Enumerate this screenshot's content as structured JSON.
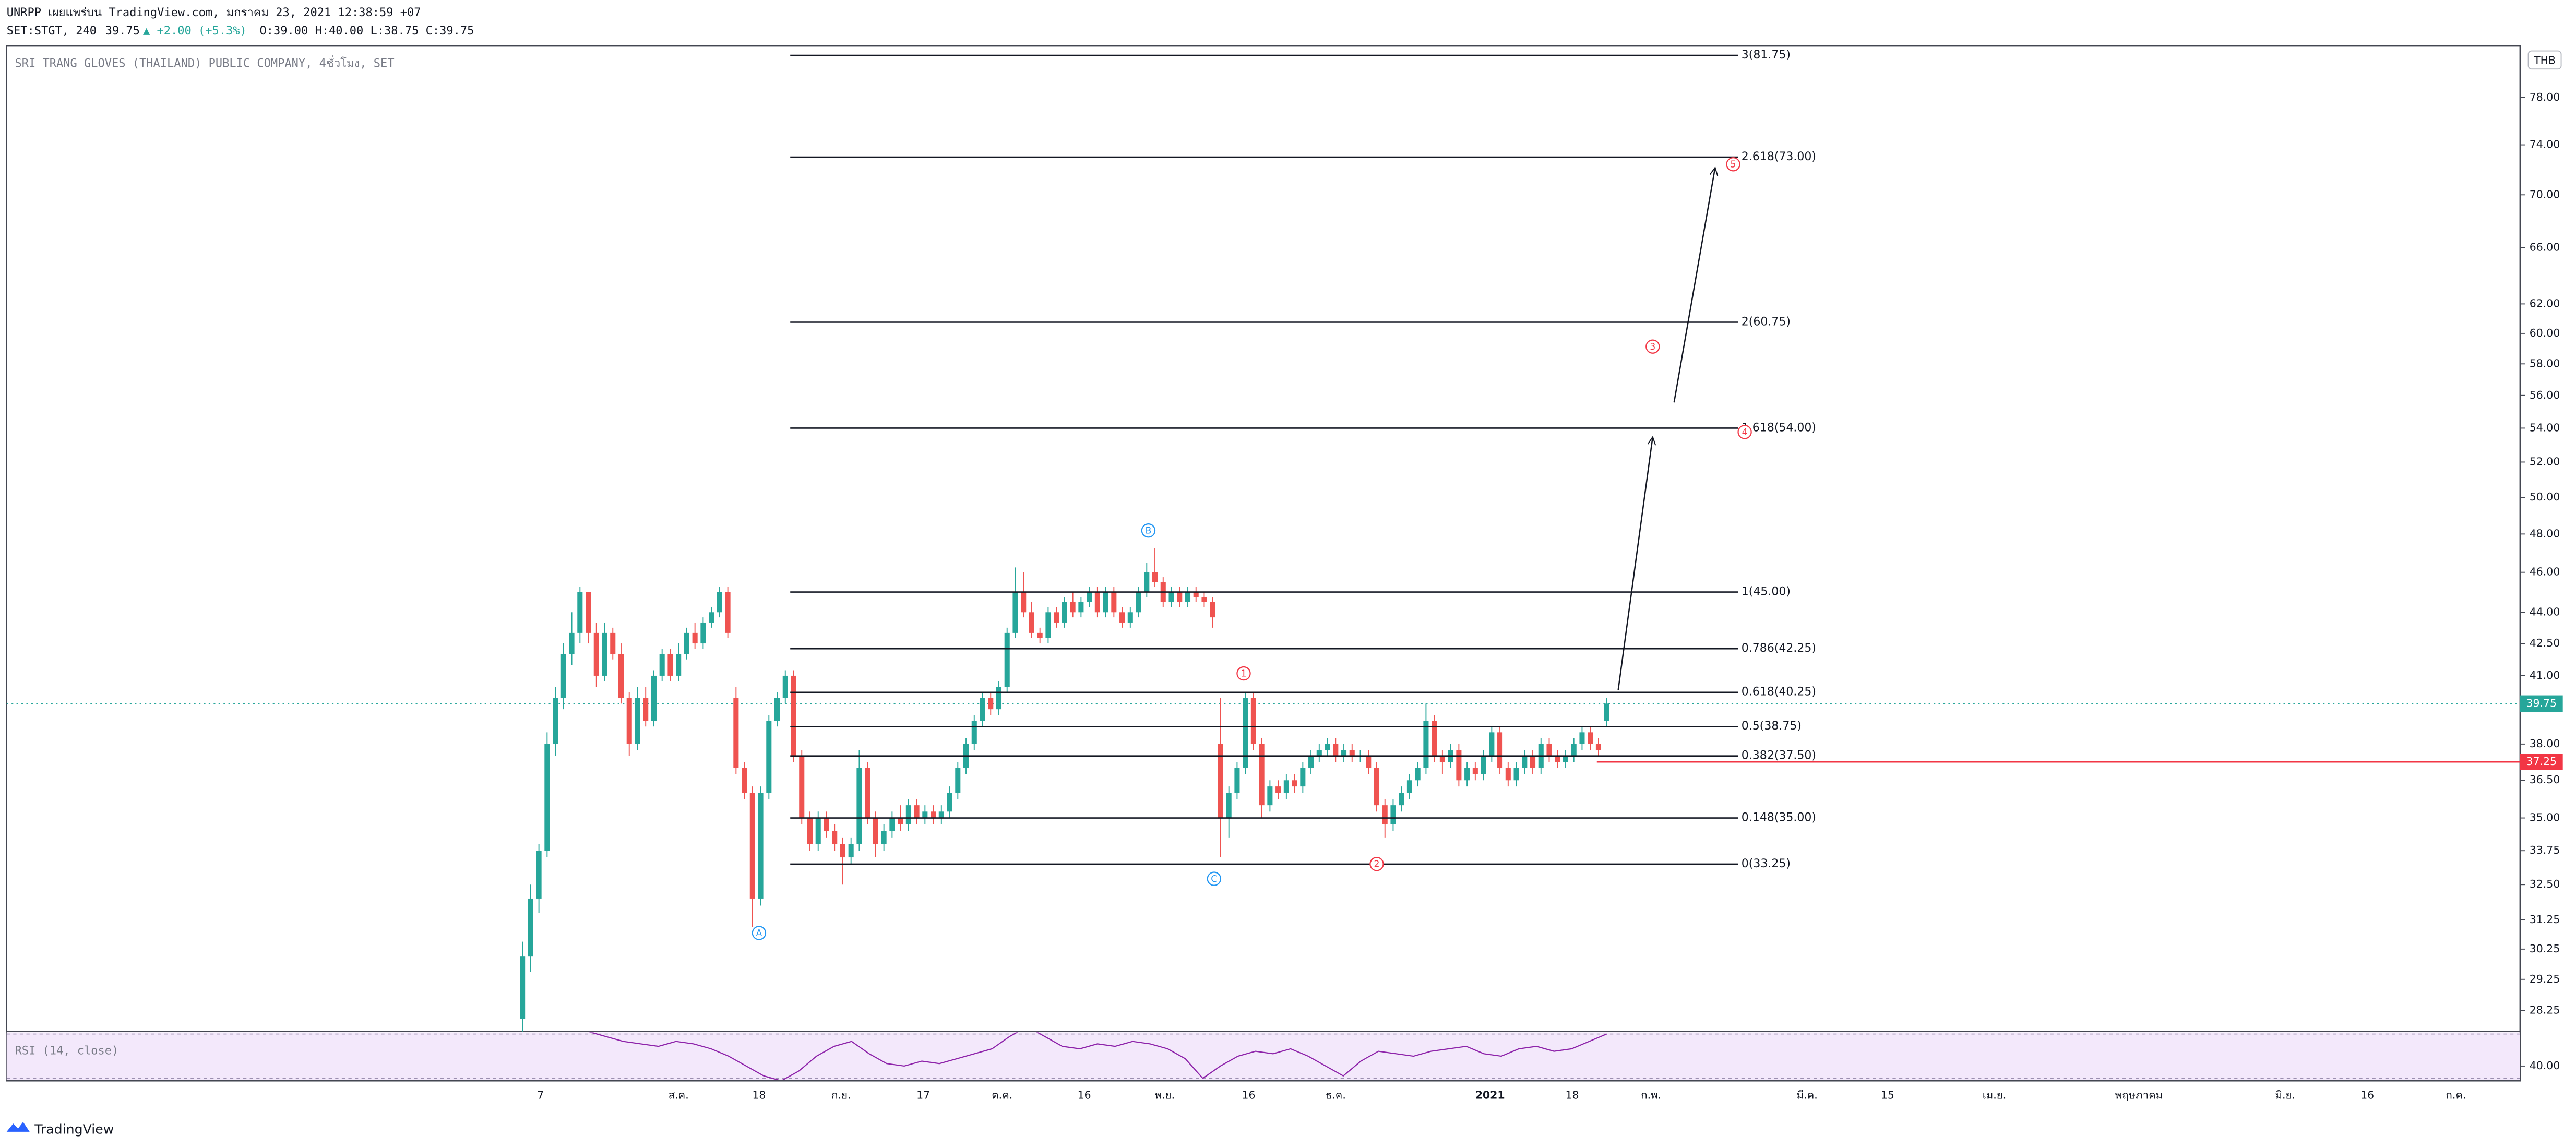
{
  "header": {
    "line1": "UNRPP เผยแพร่บน TradingView.com, มกราคม 23, 2021 12:38:59 +07",
    "symbol": "SET:STGT, 240",
    "last": "39.75",
    "change": "▲ +2.00 (+5.3%)",
    "ohlc": "O:39.00 H:40.00 L:38.75 C:39.75"
  },
  "footer": {
    "brand": "TradingView"
  },
  "chart_data": {
    "type": "candlestick",
    "title": "SRI TRANG GLOVES (THAILAND) PUBLIC COMPANY, 4ชั่วโมง, SET",
    "currency": "THB",
    "log_scale": true,
    "up_color": "#26a69a",
    "down_color": "#ef5350",
    "ylim": [
      27.6,
      82.6
    ],
    "yticks": [
      {
        "value": 78,
        "label": "78.00"
      },
      {
        "value": 74,
        "label": "74.00"
      },
      {
        "value": 70,
        "label": "70.00"
      },
      {
        "value": 66,
        "label": "66.00"
      },
      {
        "value": 62,
        "label": "62.00"
      },
      {
        "value": 60,
        "label": "60.00"
      },
      {
        "value": 58,
        "label": "58.00"
      },
      {
        "value": 56,
        "label": "56.00"
      },
      {
        "value": 54,
        "label": "54.00"
      },
      {
        "value": 52,
        "label": "52.00"
      },
      {
        "value": 50,
        "label": "50.00"
      },
      {
        "value": 48,
        "label": "48.00"
      },
      {
        "value": 46,
        "label": "46.00"
      },
      {
        "value": 44,
        "label": "44.00"
      },
      {
        "value": 42.5,
        "label": "42.50"
      },
      {
        "value": 41,
        "label": "41.00"
      },
      {
        "value": 38,
        "label": "38.00"
      },
      {
        "value": 36.5,
        "label": "36.50"
      },
      {
        "value": 35,
        "label": "35.00"
      },
      {
        "value": 33.75,
        "label": "33.75"
      },
      {
        "value": 32.5,
        "label": "32.50"
      },
      {
        "value": 31.25,
        "label": "31.25"
      },
      {
        "value": 30.25,
        "label": "30.25"
      },
      {
        "value": 29.25,
        "label": "29.25"
      },
      {
        "value": 28.25,
        "label": "28.25"
      }
    ],
    "x_labels": [
      "7",
      "ส.ค.",
      "18",
      "ก.ย.",
      "17",
      "ต.ค.",
      "16",
      "พ.ย.",
      "16",
      "ธ.ค.",
      "2021",
      "18",
      "ก.พ.",
      "มี.ค.",
      "15",
      "เม.ย.",
      "พฤษภาคม",
      "มิ.ย.",
      "16",
      "ก.ค."
    ],
    "last_price": 39.75,
    "last_price_color": "#26a69a",
    "level_price": 37.25,
    "level_color": "#f23645",
    "fib_levels": [
      {
        "label": "3(81.75)",
        "value": 81.75
      },
      {
        "label": "2.618(73.00)",
        "value": 73
      },
      {
        "label": "2(60.75)",
        "value": 60.75
      },
      {
        "label": "1.618(54.00)",
        "value": 54
      },
      {
        "label": "1(45.00)",
        "value": 45
      },
      {
        "label": "0.786(42.25)",
        "value": 42.25
      },
      {
        "label": "0.618(40.25)",
        "value": 40.25
      },
      {
        "label": "0.5(38.75)",
        "value": 38.75
      },
      {
        "label": "0.382(37.50)",
        "value": 37.5
      },
      {
        "label": "0.148(35.00)",
        "value": 35
      },
      {
        "label": "0(33.25)",
        "value": 33.25
      }
    ],
    "wave_labels": [
      {
        "label": "1",
        "color": "#f23645"
      },
      {
        "label": "2",
        "color": "#f23645"
      },
      {
        "label": "3",
        "color": "#f23645"
      },
      {
        "label": "4",
        "color": "#f23645"
      },
      {
        "label": "5",
        "color": "#f23645"
      },
      {
        "label": "A",
        "color": "#2196f3"
      },
      {
        "label": "B",
        "color": "#2196f3"
      },
      {
        "label": "C",
        "color": "#2196f3"
      }
    ],
    "candles": [
      [
        28,
        30.5,
        27.6,
        30
      ],
      [
        30,
        32.5,
        29.5,
        32
      ],
      [
        32,
        34,
        31.5,
        33.75
      ],
      [
        33.75,
        38.5,
        33.5,
        38
      ],
      [
        38,
        40.5,
        37.5,
        40
      ],
      [
        40,
        42.5,
        39.5,
        42
      ],
      [
        42,
        44,
        41.5,
        43
      ],
      [
        43,
        45.25,
        42.5,
        45
      ],
      [
        45,
        45,
        42.5,
        43
      ],
      [
        43,
        43.5,
        40.5,
        41
      ],
      [
        41,
        43.5,
        40.75,
        43
      ],
      [
        43,
        43.25,
        41.75,
        42
      ],
      [
        42,
        42.5,
        39.75,
        40
      ],
      [
        40,
        40.25,
        37.5,
        38
      ],
      [
        38,
        40.5,
        37.75,
        40
      ],
      [
        40,
        40.5,
        38.75,
        39
      ],
      [
        39,
        41.25,
        38.75,
        41
      ],
      [
        41,
        42.25,
        40.75,
        42
      ],
      [
        42,
        42.25,
        40.75,
        41
      ],
      [
        41,
        42.5,
        40.75,
        42
      ],
      [
        42,
        43.25,
        41.75,
        43
      ],
      [
        43,
        43.5,
        42.25,
        42.5
      ],
      [
        42.5,
        43.75,
        42.25,
        43.5
      ],
      [
        43.5,
        44.25,
        43.25,
        44
      ],
      [
        44,
        45.25,
        43.75,
        45
      ],
      [
        45,
        45.25,
        42.75,
        43
      ],
      [
        40,
        40.5,
        36.75,
        37
      ],
      [
        37,
        37.25,
        35.75,
        36
      ],
      [
        36,
        36.25,
        31,
        32
      ],
      [
        32,
        36.25,
        31.75,
        36
      ],
      [
        36,
        39.25,
        35.75,
        39
      ],
      [
        39,
        40.25,
        38.75,
        40
      ],
      [
        40,
        41.25,
        39.75,
        41
      ],
      [
        41,
        41.25,
        37.25,
        37.5
      ],
      [
        37.5,
        37.75,
        34.75,
        35
      ],
      [
        35,
        35.25,
        33.75,
        34
      ],
      [
        34,
        35.25,
        33.75,
        35
      ],
      [
        35,
        35.25,
        34.25,
        34.5
      ],
      [
        34.5,
        34.75,
        33.75,
        34
      ],
      [
        34,
        34.25,
        32.5,
        33.5
      ],
      [
        33.5,
        34.25,
        33.25,
        34
      ],
      [
        34,
        37.75,
        33.75,
        37
      ],
      [
        37,
        37.25,
        34.75,
        35
      ],
      [
        35,
        35.25,
        33.5,
        34
      ],
      [
        34,
        34.75,
        33.75,
        34.5
      ],
      [
        34.5,
        35.25,
        34.25,
        35
      ],
      [
        35,
        35.5,
        34.5,
        34.75
      ],
      [
        34.75,
        35.75,
        34.5,
        35.5
      ],
      [
        35.5,
        35.75,
        34.75,
        35
      ],
      [
        35,
        35.5,
        34.75,
        35.25
      ],
      [
        35.25,
        35.5,
        34.75,
        35
      ],
      [
        35,
        35.5,
        34.75,
        35.25
      ],
      [
        35.25,
        36.25,
        35,
        36
      ],
      [
        36,
        37.25,
        35.75,
        37
      ],
      [
        37,
        38.25,
        36.75,
        38
      ],
      [
        38,
        39.25,
        37.75,
        39
      ],
      [
        39,
        40.25,
        38.75,
        40
      ],
      [
        40,
        40.25,
        39.25,
        39.5
      ],
      [
        39.5,
        40.75,
        39.25,
        40.5
      ],
      [
        40.5,
        43.25,
        40.25,
        43
      ],
      [
        43,
        46.25,
        42.75,
        45
      ],
      [
        45,
        46,
        43.75,
        44
      ],
      [
        44,
        44.5,
        42.75,
        43
      ],
      [
        43,
        43.25,
        42.5,
        42.75
      ],
      [
        42.75,
        44.25,
        42.5,
        44
      ],
      [
        44,
        44.25,
        43.25,
        43.5
      ],
      [
        43.5,
        44.75,
        43.25,
        44.5
      ],
      [
        44.5,
        45,
        43.75,
        44
      ],
      [
        44,
        44.75,
        43.75,
        44.5
      ],
      [
        44.5,
        45.25,
        44.25,
        45
      ],
      [
        45,
        45.25,
        43.75,
        44
      ],
      [
        44,
        45.25,
        43.75,
        45
      ],
      [
        45,
        45.25,
        43.75,
        44
      ],
      [
        44,
        44.25,
        43.25,
        43.5
      ],
      [
        43.5,
        44.25,
        43.25,
        44
      ],
      [
        44,
        45.25,
        43.75,
        45
      ],
      [
        45,
        46.5,
        44.75,
        46
      ],
      [
        46,
        47.25,
        45.25,
        45.5
      ],
      [
        45.5,
        45.75,
        44.25,
        44.5
      ],
      [
        44.5,
        45.25,
        44.25,
        45
      ],
      [
        45,
        45.25,
        44.25,
        44.5
      ],
      [
        44.5,
        45.25,
        44.25,
        45
      ],
      [
        45,
        45.25,
        44.5,
        44.75
      ],
      [
        44.75,
        45,
        44.25,
        44.5
      ],
      [
        44.5,
        44.75,
        43.25,
        43.75
      ],
      [
        38,
        40,
        33.5,
        35
      ],
      [
        35,
        36.25,
        34.25,
        36
      ],
      [
        36,
        37.25,
        35.75,
        37
      ],
      [
        37,
        40.25,
        36.75,
        40
      ],
      [
        40,
        40.25,
        37.75,
        38
      ],
      [
        38,
        38.25,
        35,
        35.5
      ],
      [
        35.5,
        36.5,
        35.25,
        36.25
      ],
      [
        36.25,
        36.5,
        35.75,
        36
      ],
      [
        36,
        36.75,
        35.75,
        36.5
      ],
      [
        36.5,
        36.75,
        36,
        36.25
      ],
      [
        36.25,
        37.25,
        36,
        37
      ],
      [
        37,
        37.75,
        36.75,
        37.5
      ],
      [
        37.5,
        38,
        37.25,
        37.75
      ],
      [
        37.75,
        38.25,
        37.5,
        38
      ],
      [
        38,
        38.25,
        37.25,
        37.5
      ],
      [
        37.5,
        38,
        37.25,
        37.75
      ],
      [
        37.75,
        38,
        37.25,
        37.5
      ],
      [
        37.5,
        37.75,
        37.25,
        37.5
      ],
      [
        37.5,
        37.75,
        36.75,
        37
      ],
      [
        37,
        37.25,
        35.25,
        35.5
      ],
      [
        35.5,
        35.75,
        34.25,
        34.75
      ],
      [
        34.75,
        35.75,
        34.5,
        35.5
      ],
      [
        35.5,
        36.25,
        35.25,
        36
      ],
      [
        36,
        36.75,
        35.75,
        36.5
      ],
      [
        36.5,
        37.25,
        36.25,
        37
      ],
      [
        37,
        39.75,
        36.75,
        39
      ],
      [
        39,
        39.25,
        37.25,
        37.5
      ],
      [
        37.5,
        37.75,
        36.75,
        37.25
      ],
      [
        37.25,
        38,
        37,
        37.75
      ],
      [
        37.75,
        38,
        36.25,
        36.5
      ],
      [
        36.5,
        37.25,
        36.25,
        37
      ],
      [
        37,
        37.25,
        36.5,
        36.75
      ],
      [
        36.75,
        37.75,
        36.5,
        37.5
      ],
      [
        37.5,
        38.75,
        37.25,
        38.5
      ],
      [
        38.5,
        38.75,
        36.75,
        37
      ],
      [
        37,
        37.25,
        36.25,
        36.5
      ],
      [
        36.5,
        37.25,
        36.25,
        37
      ],
      [
        37,
        37.75,
        36.75,
        37.5
      ],
      [
        37.5,
        37.75,
        36.75,
        37
      ],
      [
        37,
        38.25,
        36.75,
        38
      ],
      [
        38,
        38.25,
        37.25,
        37.5
      ],
      [
        37.5,
        37.75,
        37,
        37.25
      ],
      [
        37.25,
        37.75,
        37,
        37.5
      ],
      [
        37.5,
        38.25,
        37.25,
        38
      ],
      [
        38,
        38.75,
        37.75,
        38.5
      ],
      [
        38.5,
        38.75,
        37.75,
        38
      ],
      [
        38,
        38.25,
        37.5,
        37.75
      ],
      [
        39,
        40,
        38.75,
        39.75
      ]
    ],
    "rsi": {
      "title": "RSI (14, close)",
      "color": "#8e24aa",
      "ylim": [
        34,
        54
      ],
      "yticks": [
        {
          "value": 40,
          "label": "40.00"
        }
      ],
      "values": [
        54,
        52,
        50,
        49,
        48,
        50,
        49,
        47,
        44,
        40,
        36,
        34,
        38,
        44,
        48,
        50,
        45,
        41,
        40,
        42,
        41,
        43,
        45,
        47,
        52,
        56,
        52,
        48,
        47,
        49,
        48,
        50,
        49,
        47,
        43,
        35,
        40,
        44,
        46,
        45,
        47,
        44,
        40,
        36,
        42,
        46,
        45,
        44,
        46,
        47,
        48,
        45,
        44,
        47,
        48,
        46,
        47,
        50,
        53
      ]
    }
  }
}
